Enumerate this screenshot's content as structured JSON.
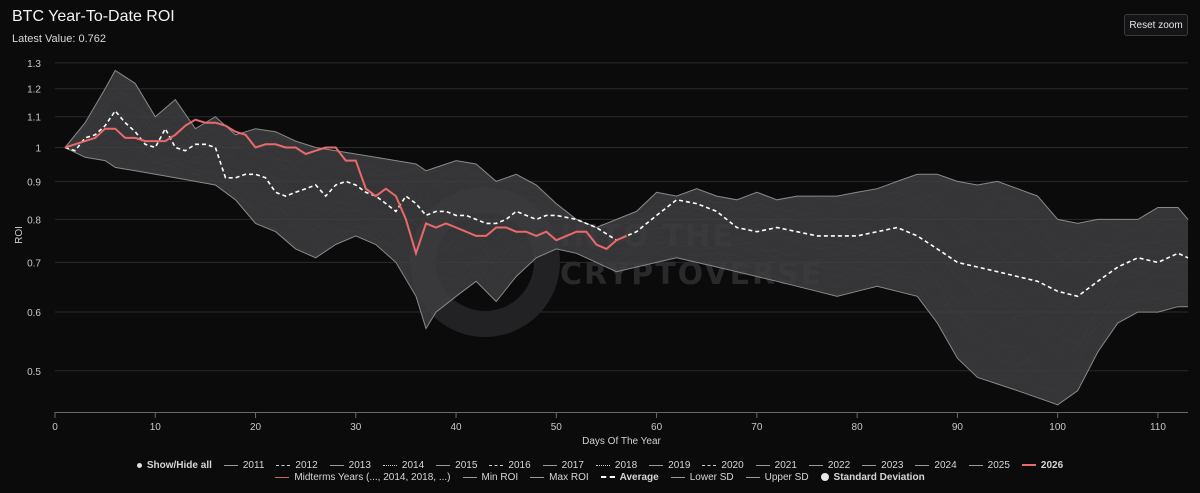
{
  "header": {
    "title": "BTC Year-To-Date ROI",
    "subtitle": "Latest Value: 0.762",
    "reset_label": "Reset zoom"
  },
  "watermark": [
    "INTO THE",
    "CRYPTOVERSE"
  ],
  "colors": {
    "background": "#0b0b0c",
    "band": "#3d3d3f",
    "band_edge": "#8a8a8a",
    "average": "#ffffff",
    "current_year": "#e86a6a"
  },
  "legend": {
    "row1": [
      {
        "label": "Show/Hide all",
        "style": "dot"
      },
      {
        "label": "2011",
        "style": "solid"
      },
      {
        "label": "2012",
        "style": "dash"
      },
      {
        "label": "2013",
        "style": "solid"
      },
      {
        "label": "2014",
        "style": "dot-line"
      },
      {
        "label": "2015",
        "style": "solid"
      },
      {
        "label": "2016",
        "style": "dash"
      },
      {
        "label": "2017",
        "style": "solid"
      },
      {
        "label": "2018",
        "style": "dot-line"
      },
      {
        "label": "2019",
        "style": "solid"
      },
      {
        "label": "2020",
        "style": "dash"
      },
      {
        "label": "2021",
        "style": "solid"
      },
      {
        "label": "2022",
        "style": "solid"
      },
      {
        "label": "2023",
        "style": "solid"
      },
      {
        "label": "2024",
        "style": "solid"
      },
      {
        "label": "2025",
        "style": "solid"
      },
      {
        "label": "2026",
        "style": "red"
      }
    ],
    "row2": [
      {
        "label": "Midterms Years (..., 2014, 2018, ...)",
        "style": "red-thin"
      },
      {
        "label": "Min ROI",
        "style": "solid"
      },
      {
        "label": "Max ROI",
        "style": "solid"
      },
      {
        "label": "Average",
        "style": "dash-bold"
      },
      {
        "label": "Lower SD",
        "style": "solid"
      },
      {
        "label": "Upper SD",
        "style": "solid"
      },
      {
        "label": "Standard Deviation",
        "style": "circle"
      }
    ]
  },
  "chart_data": {
    "type": "line",
    "title": "BTC Year-To-Date ROI",
    "xlabel": "Days Of The Year",
    "ylabel": "ROI",
    "xlim": [
      0,
      113
    ],
    "ylim": [
      0.44,
      1.32
    ],
    "y_scale": "log",
    "x_ticks": [
      0,
      10,
      20,
      30,
      40,
      50,
      60,
      70,
      80,
      90,
      100,
      110
    ],
    "y_ticks": [
      0.5,
      0.6,
      0.7,
      0.8,
      0.9,
      1,
      1.1,
      1.2,
      1.3
    ],
    "grid": true,
    "legend_position": "bottom",
    "band": {
      "name": "Standard Deviation",
      "x": [
        1,
        3,
        5,
        6,
        8,
        10,
        12,
        14,
        16,
        18,
        20,
        22,
        24,
        26,
        28,
        30,
        32,
        34,
        36,
        37,
        38,
        40,
        42,
        44,
        46,
        48,
        50,
        52,
        54,
        56,
        58,
        60,
        62,
        64,
        66,
        68,
        70,
        72,
        74,
        76,
        78,
        80,
        82,
        84,
        86,
        88,
        90,
        92,
        94,
        96,
        98,
        100,
        102,
        104,
        106,
        108,
        110,
        112,
        113
      ],
      "upper": [
        1.0,
        1.08,
        1.2,
        1.27,
        1.22,
        1.1,
        1.16,
        1.06,
        1.1,
        1.04,
        1.06,
        1.05,
        1.02,
        1.0,
        0.99,
        0.98,
        0.97,
        0.96,
        0.95,
        0.93,
        0.94,
        0.96,
        0.95,
        0.9,
        0.92,
        0.89,
        0.84,
        0.8,
        0.78,
        0.8,
        0.82,
        0.87,
        0.86,
        0.88,
        0.86,
        0.85,
        0.87,
        0.85,
        0.86,
        0.86,
        0.86,
        0.87,
        0.88,
        0.9,
        0.92,
        0.92,
        0.9,
        0.89,
        0.9,
        0.88,
        0.86,
        0.8,
        0.79,
        0.8,
        0.8,
        0.8,
        0.83,
        0.83,
        0.8
      ],
      "lower": [
        1.0,
        0.97,
        0.96,
        0.94,
        0.93,
        0.92,
        0.91,
        0.9,
        0.89,
        0.85,
        0.79,
        0.77,
        0.73,
        0.71,
        0.74,
        0.76,
        0.74,
        0.7,
        0.63,
        0.57,
        0.6,
        0.63,
        0.66,
        0.62,
        0.67,
        0.71,
        0.73,
        0.72,
        0.7,
        0.68,
        0.69,
        0.7,
        0.71,
        0.7,
        0.69,
        0.68,
        0.67,
        0.66,
        0.65,
        0.64,
        0.63,
        0.64,
        0.65,
        0.64,
        0.63,
        0.58,
        0.52,
        0.49,
        0.48,
        0.47,
        0.46,
        0.45,
        0.47,
        0.53,
        0.58,
        0.6,
        0.6,
        0.61,
        0.61
      ]
    },
    "series": [
      {
        "name": "Average",
        "style": "dash",
        "x": [
          1,
          2,
          3,
          4,
          5,
          6,
          7,
          8,
          9,
          10,
          11,
          12,
          13,
          14,
          15,
          16,
          17,
          18,
          19,
          20,
          21,
          22,
          23,
          24,
          25,
          26,
          27,
          28,
          29,
          30,
          31,
          32,
          33,
          34,
          35,
          36,
          37,
          38,
          39,
          40,
          41,
          42,
          43,
          44,
          45,
          46,
          47,
          48,
          49,
          50,
          52,
          54,
          56,
          58,
          60,
          62,
          64,
          66,
          68,
          70,
          72,
          74,
          76,
          78,
          80,
          82,
          84,
          86,
          88,
          90,
          92,
          94,
          96,
          98,
          100,
          102,
          104,
          106,
          108,
          110,
          112,
          113
        ],
        "values": [
          1.0,
          0.99,
          1.03,
          1.04,
          1.07,
          1.12,
          1.08,
          1.05,
          1.01,
          1.0,
          1.06,
          1.0,
          0.99,
          1.01,
          1.01,
          1.0,
          0.91,
          0.91,
          0.92,
          0.92,
          0.91,
          0.87,
          0.86,
          0.87,
          0.88,
          0.89,
          0.86,
          0.89,
          0.9,
          0.89,
          0.87,
          0.86,
          0.84,
          0.82,
          0.86,
          0.84,
          0.81,
          0.82,
          0.82,
          0.81,
          0.81,
          0.8,
          0.79,
          0.79,
          0.8,
          0.82,
          0.81,
          0.8,
          0.81,
          0.81,
          0.8,
          0.78,
          0.75,
          0.77,
          0.81,
          0.85,
          0.84,
          0.82,
          0.78,
          0.77,
          0.78,
          0.77,
          0.76,
          0.76,
          0.76,
          0.77,
          0.78,
          0.76,
          0.73,
          0.7,
          0.69,
          0.68,
          0.67,
          0.66,
          0.64,
          0.63,
          0.66,
          0.69,
          0.71,
          0.7,
          0.72,
          0.71
        ]
      },
      {
        "name": "2026",
        "style": "red",
        "x": [
          1,
          2,
          3,
          4,
          5,
          6,
          7,
          8,
          9,
          10,
          11,
          12,
          13,
          14,
          15,
          16,
          17,
          18,
          19,
          20,
          21,
          22,
          23,
          24,
          25,
          26,
          27,
          28,
          29,
          30,
          31,
          32,
          33,
          34,
          35,
          36,
          37,
          38,
          39,
          40,
          41,
          42,
          43,
          44,
          45,
          46,
          47,
          48,
          49,
          50,
          51,
          52,
          53,
          54,
          55,
          56,
          57
        ],
        "values": [
          1.0,
          1.01,
          1.02,
          1.03,
          1.06,
          1.06,
          1.03,
          1.03,
          1.02,
          1.02,
          1.02,
          1.04,
          1.07,
          1.09,
          1.08,
          1.08,
          1.07,
          1.05,
          1.04,
          1.0,
          1.01,
          1.01,
          1.0,
          1.0,
          0.98,
          0.99,
          1.0,
          1.0,
          0.96,
          0.96,
          0.88,
          0.86,
          0.88,
          0.86,
          0.8,
          0.72,
          0.79,
          0.78,
          0.79,
          0.78,
          0.77,
          0.76,
          0.76,
          0.78,
          0.78,
          0.77,
          0.77,
          0.76,
          0.77,
          0.75,
          0.76,
          0.77,
          0.77,
          0.74,
          0.73,
          0.75,
          0.76
        ]
      }
    ],
    "background_series_count": 15
  }
}
